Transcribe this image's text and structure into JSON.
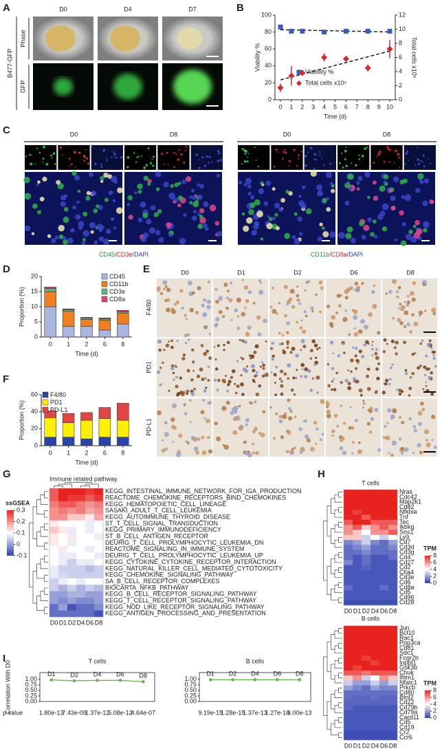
{
  "figure": {
    "panel_labels": [
      "A",
      "B",
      "C",
      "D",
      "E",
      "F",
      "G",
      "H",
      "I"
    ]
  },
  "panel_a": {
    "columns": [
      "D0",
      "D4",
      "D7"
    ],
    "sample": "B477-GFP",
    "rows": [
      "Phase",
      "GFP"
    ]
  },
  "panel_c": {
    "groups": [
      {
        "columns": [
          "D0",
          "D8"
        ],
        "stain": [
          {
            "text": "CD45",
            "color": "#1f9a3c"
          },
          {
            "text": "/CD3e",
            "color": "#d62728"
          },
          {
            "text": "/DAPI",
            "color": "#2b3a9b"
          }
        ]
      },
      {
        "columns": [
          "D0",
          "D8"
        ],
        "stain": [
          {
            "text": "CD11b",
            "color": "#1f9a3c"
          },
          {
            "text": "/CD8a",
            "color": "#d62728"
          },
          {
            "text": "/DAPI",
            "color": "#2b3a9b"
          }
        ]
      }
    ]
  },
  "panel_e": {
    "columns": [
      "D0",
      "D1",
      "D2",
      "D6",
      "D8"
    ],
    "rows": [
      "F4/80",
      "PD1",
      "PD-L1"
    ]
  },
  "chart_data": [
    {
      "type": "scatter",
      "x": [
        0,
        1,
        2,
        4,
        6,
        8,
        10
      ],
      "xlim": [
        -0.5,
        10.5
      ],
      "xticks": [
        0,
        1,
        2,
        3,
        4,
        5,
        6,
        7,
        8,
        9,
        10
      ],
      "ylim": [
        0,
        100
      ],
      "yticks": [
        0,
        20,
        40,
        60,
        80,
        100
      ],
      "y2lim": [
        0,
        12
      ],
      "y2ticks": [
        0,
        2,
        4,
        6,
        8,
        10,
        12
      ],
      "xlabel": "Time (d)",
      "ylabel": "Viability %",
      "y2label": "Total cells x10⁶",
      "trendline": true,
      "legend": "lower right",
      "series": [
        {
          "name": "Viability %",
          "color": "#3a5bb8",
          "marker": "square",
          "values": [
            86,
            81,
            81,
            80,
            81,
            81,
            81
          ],
          "errors": [
            2,
            1.5,
            1.5,
            1,
            1,
            1,
            1
          ]
        },
        {
          "name": "Total cells x10⁶",
          "color": "#d42a2a",
          "marker": "diamond",
          "axis": "y2",
          "values": [
            1.7,
            3.4,
            3.8,
            6.0,
            5.8,
            4.5,
            7.2
          ],
          "errors": [
            0.6,
            1.4,
            0.4,
            0.6,
            0.4,
            0.5,
            1.3
          ]
        }
      ]
    },
    {
      "type": "bar",
      "stacked": true,
      "categories": [
        "0",
        "1",
        "2",
        "6",
        "8"
      ],
      "ylim": [
        0,
        20
      ],
      "yticks": [
        0,
        5,
        10,
        15,
        20
      ],
      "xlabel": "Time (d)",
      "ylabel": "Proportion (%)",
      "legend": "upper right",
      "series": [
        {
          "name": "CD45",
          "color": "#a9b7e0",
          "values": [
            10,
            3.5,
            3.5,
            2.3,
            4.3
          ]
        },
        {
          "name": "CD11b",
          "color": "#f07f22",
          "values": [
            5,
            5,
            2.3,
            3.3,
            3.5
          ]
        },
        {
          "name": "CD3e",
          "color": "#5cb88c",
          "values": [
            1,
            0.5,
            0.5,
            0.4,
            0.5
          ]
        },
        {
          "name": "CD8a",
          "color": "#e0407a",
          "values": [
            0.5,
            0.3,
            0.2,
            0.3,
            0.5
          ]
        }
      ]
    },
    {
      "type": "bar",
      "stacked": true,
      "categories": [
        "0",
        "1",
        "2",
        "6",
        "8"
      ],
      "ylim": [
        0,
        60
      ],
      "yticks": [
        0,
        20,
        40,
        60
      ],
      "xlabel": "Time (d)",
      "ylabel": "Proportion (%)",
      "legend": "upper left",
      "series": [
        {
          "name": "F4/80",
          "color": "#2a44a8",
          "values": [
            10,
            10,
            8,
            10,
            10
          ]
        },
        {
          "name": "PD1",
          "color": "#fff000",
          "values": [
            23,
            17,
            22,
            22,
            20
          ]
        },
        {
          "name": "PD-L1",
          "color": "#e04646",
          "values": [
            8,
            11,
            9,
            13,
            20
          ]
        }
      ]
    },
    {
      "type": "heatmap",
      "title": "Immune related pathway",
      "columns": [
        "D0",
        "D1",
        "D2",
        "D4",
        "D6",
        "D8"
      ],
      "colorbar": {
        "label": "ssGSEA",
        "ticks": [
          0.3,
          0.2,
          0.1,
          0,
          -0.1
        ]
      },
      "colorscale": {
        "domain": [
          -0.1,
          0.1,
          0.3
        ],
        "colors": [
          "#2f3fb0",
          "#ffffff",
          "#e8231f"
        ]
      },
      "rows": [
        "KEGG_INTESTINAL_IMMUNE_NETWORK_FOR_IGA_PRODUCTION",
        "REACTOME_CHEMOKINE_RECEPTORS_BIND_CHEMOKINES",
        "KEGG_HEMATOPOIETIC_CELL_LINEAGE",
        "SASAKI_ADULT_T_CELL_LEUKEMIA",
        "KEGG_AUTOIMMUNE_THYROID_DISEASE",
        "ST_T_CELL_SIGNAL_TRANSDUCTION",
        "KEGG_PRIMARY_IMMUNODEFICIENCY",
        "ST_B_CELL_ANTIGEN_RECEPTOR",
        "DEURIG_T_CELL_PROLYMPHOCYTIC_LEUKEMIA_DN",
        "REACTOME_SIGNALING_IN_IMMUNE_SYSTEM",
        "DEURIG_T_CELL_PROLYMPHOCYTIC_LEUKEMIA_UP",
        "KEGG_CYTOKINE_CYTOKINE_RECEPTOR_INTERACTION",
        "KEGG_NATURAL_KILLER_CELL_MEDIATED_CYTOTOXICITY",
        "KEGG_CHEMOKINE_SIGNALING_PATHWAY",
        "SA_B_CELL_RECEPTOR_COMPLEXES",
        "BIOCARTA_NFKB_PATHWAY",
        "KEGG_B_CELL_RECEPTOR_SIGNALING_PATHWAY",
        "KEGG_T_CELL_RECEPTOR_SIGNALING_PATHWAY",
        "KEGG_NOD_LIKE_RECEPTOR_SIGNALING_PATHWAY",
        "KEGG_ANTIGEN_PROCESSING_AND_PRESENTATION"
      ],
      "values": [
        [
          0.25,
          0.3,
          0.3,
          0.3,
          0.28,
          0.3
        ],
        [
          0.25,
          0.3,
          0.28,
          0.28,
          0.25,
          0.28
        ],
        [
          0.22,
          0.25,
          0.25,
          0.22,
          0.2,
          0.22
        ],
        [
          0.2,
          0.22,
          0.2,
          0.22,
          0.18,
          0.2
        ],
        [
          0.2,
          0.2,
          0.15,
          0.15,
          0.12,
          0.18
        ],
        [
          0.12,
          0.1,
          0.1,
          0.1,
          0.08,
          0.1
        ],
        [
          0.15,
          0.12,
          0.08,
          0.1,
          0.08,
          0.1
        ],
        [
          0.12,
          0.1,
          0.12,
          0.1,
          0.1,
          0.08
        ],
        [
          0.12,
          0.1,
          0.08,
          0.1,
          0.1,
          0.1
        ],
        [
          0.1,
          0.12,
          0.1,
          0.1,
          0.08,
          0.1
        ],
        [
          0.1,
          0.08,
          0.08,
          0.1,
          0.1,
          0.08
        ],
        [
          0.1,
          0.08,
          0.05,
          0.08,
          0.08,
          0.1
        ],
        [
          0.08,
          0.05,
          0.05,
          0.05,
          0.03,
          0.05
        ],
        [
          0.08,
          0.06,
          0.05,
          0.05,
          0.05,
          0.05
        ],
        [
          0.05,
          0.08,
          0.1,
          0.08,
          0.1,
          0.1
        ],
        [
          0.05,
          0.02,
          0.05,
          0.02,
          0.05,
          0.03
        ],
        [
          0,
          0,
          0.02,
          0.02,
          0,
          0
        ],
        [
          0,
          -0.02,
          0,
          -0.02,
          -0.02,
          0
        ],
        [
          -0.05,
          0,
          -0.08,
          -0.05,
          -0.05,
          -0.02
        ],
        [
          -0.05,
          -0.05,
          -0.05,
          -0.05,
          -0.05,
          -0.08
        ]
      ]
    },
    {
      "type": "heatmap",
      "title": "T cells",
      "columns": [
        "D0",
        "D1",
        "D2",
        "D4",
        "D6",
        "D8"
      ],
      "colorbar": {
        "label": "TPM",
        "ticks": [
          8,
          6,
          4,
          2,
          0
        ]
      },
      "colorscale": {
        "domain": [
          0,
          4,
          8
        ],
        "colors": [
          "#2f3fb0",
          "#ffffff",
          "#e8231f"
        ]
      },
      "rows": [
        "Nras",
        "Cdc42",
        "Map2k1",
        "Cd82",
        "Nfkbia",
        "Tnf",
        "Tec",
        "Ikbkg",
        "Sos1",
        "Ly9",
        "Cd7",
        "Cd3d",
        "Cd3g",
        "Cd4",
        "Cd27",
        "Cd2",
        "Ctla4",
        "Cd3e",
        "Cd6",
        "Cd8a",
        "Cd5",
        "Cd96",
        "Cd28"
      ],
      "values": [
        [
          8,
          8,
          8,
          8,
          8,
          8
        ],
        [
          8,
          8,
          8,
          8,
          8,
          8
        ],
        [
          8,
          8,
          8,
          8,
          8,
          8
        ],
        [
          8,
          8,
          8,
          8,
          8,
          8
        ],
        [
          8,
          7.5,
          8,
          8,
          8,
          8
        ],
        [
          8,
          8,
          7,
          8,
          8,
          8
        ],
        [
          7,
          8,
          8,
          7,
          7,
          7
        ],
        [
          6,
          7,
          5,
          6,
          7,
          6
        ],
        [
          6,
          5,
          4,
          6,
          6,
          7
        ],
        [
          5,
          5,
          3,
          4,
          3,
          4
        ],
        [
          1.5,
          2,
          3,
          1.5,
          1,
          2
        ],
        [
          1,
          1.5,
          2,
          1,
          1,
          1.5
        ],
        [
          1,
          1,
          1.5,
          1,
          1,
          1
        ],
        [
          1,
          0.5,
          1,
          0.5,
          0.5,
          1
        ],
        [
          1.5,
          0.5,
          1,
          0.5,
          0.5,
          0.5
        ],
        [
          0.5,
          0.5,
          0.8,
          0.5,
          0.5,
          0.5
        ],
        [
          0.5,
          0.5,
          0.5,
          0.5,
          0.5,
          0.5
        ],
        [
          0.5,
          0.5,
          0.5,
          0.5,
          0.5,
          0.5
        ],
        [
          0.5,
          0.5,
          0.5,
          0.5,
          0.5,
          0.5
        ],
        [
          1,
          0.5,
          0.5,
          0.5,
          1,
          0.5
        ],
        [
          0.5,
          0.5,
          0.5,
          0.5,
          0.5,
          0.5
        ],
        [
          0.5,
          0.5,
          0.5,
          0.5,
          0.5,
          0.5
        ],
        [
          0.3,
          0.3,
          0.3,
          0.3,
          0.3,
          0.3
        ]
      ]
    },
    {
      "type": "heatmap",
      "title": "B cells",
      "columns": [
        "D0",
        "D1",
        "D2",
        "D4",
        "D6",
        "D8"
      ],
      "colorbar": {
        "label": "TPM",
        "ticks": [
          8,
          6,
          4,
          2,
          0
        ]
      },
      "colorscale": {
        "domain": [
          0,
          4,
          8
        ],
        "colors": [
          "#2f3fb0",
          "#ffffff",
          "#e8231f"
        ]
      },
      "rows": [
        "Jun",
        "Bcl10",
        "Rac1",
        "Ppp3ca",
        "Cd81",
        "Sdc1",
        "Fcgr2b",
        "Inppl1",
        "Gsk3b",
        "Chuk",
        "Ifitm1",
        "Nfatc1",
        "Prkcb",
        "Cd80",
        "Btnl2",
        "Cd22",
        "Cd79b",
        "Cd79a",
        "Card11",
        "Cd5",
        "Cd19",
        "Cr2",
        "Ccr6"
      ],
      "values": [
        [
          8,
          8,
          8,
          8,
          8,
          8
        ],
        [
          8,
          8,
          8,
          8,
          8,
          8
        ],
        [
          8,
          8,
          8,
          8,
          8,
          8
        ],
        [
          8,
          8,
          8,
          8,
          8,
          8
        ],
        [
          8,
          8,
          8,
          8,
          8,
          8
        ],
        [
          8,
          8,
          8,
          8,
          8,
          8
        ],
        [
          8,
          8,
          7.5,
          8,
          8,
          8
        ],
        [
          8,
          8,
          8,
          7.5,
          8,
          8
        ],
        [
          8,
          7.5,
          8,
          8,
          8,
          8
        ],
        [
          7,
          7,
          6.5,
          7,
          7,
          7
        ],
        [
          5,
          6,
          3,
          4,
          6,
          5
        ],
        [
          3,
          2,
          2,
          3,
          2,
          3
        ],
        [
          2,
          1.5,
          1,
          2,
          1.5,
          1.5
        ],
        [
          1,
          1,
          1,
          1,
          1,
          1
        ],
        [
          1,
          0.8,
          0.8,
          1,
          0.8,
          0.8
        ],
        [
          0.8,
          0.8,
          0.8,
          0.8,
          0.8,
          0.8
        ],
        [
          0.8,
          0.5,
          0.5,
          0.5,
          0.5,
          0.5
        ],
        [
          0.5,
          0.5,
          0.5,
          0.5,
          0.5,
          0.5
        ],
        [
          0.5,
          0.5,
          0.5,
          0.5,
          0.5,
          0.5
        ],
        [
          0.5,
          0.5,
          0.5,
          0.5,
          0.5,
          0.5
        ],
        [
          0.5,
          0.5,
          0.5,
          0.5,
          0.5,
          0.5
        ],
        [
          0.3,
          0.3,
          0.3,
          0.3,
          0.3,
          0.3
        ],
        [
          0.3,
          0.3,
          0.3,
          0.3,
          0.3,
          0.3
        ]
      ]
    },
    {
      "type": "line",
      "title": "T cells",
      "ylabel": "Correlation With D0",
      "categories": [
        "D1",
        "D2",
        "D4",
        "D6",
        "D8"
      ],
      "values": [
        0.97,
        0.93,
        0.95,
        0.95,
        0.89
      ],
      "color": "#6bb24a",
      "ylim": [
        0,
        1.3
      ],
      "yticks": [
        {
          "value": 0,
          "label": "0.00"
        },
        {
          "value": 0.25,
          "label": "0.25"
        },
        {
          "value": 0.5,
          "label": "0.50"
        },
        {
          "value": 0.75,
          "label": "0.75"
        },
        {
          "value": 1,
          "label": "1.00"
        }
      ],
      "p_label": "p value",
      "p_values": [
        "1.80e-13",
        "7.43e-09",
        "1.37e-12",
        "5.08e-12",
        "4.64e-07"
      ]
    },
    {
      "type": "line",
      "title": "B cells",
      "categories": [
        "D1",
        "D2",
        "D4",
        "D6",
        "D8"
      ],
      "values": [
        0.98,
        0.98,
        0.98,
        0.98,
        0.98
      ],
      "color": "#6bb24a",
      "ylim": [
        0,
        1.3
      ],
      "yticks": [
        {
          "value": 0,
          "label": "0.00"
        },
        {
          "value": 0.25,
          "label": "0.25"
        },
        {
          "value": 0.5,
          "label": "0.50"
        },
        {
          "value": 0.75,
          "label": "0.75"
        },
        {
          "value": 1,
          "label": "1.00"
        }
      ],
      "p_values": [
        "9.19e-15",
        "1.28e-15",
        "1.37e-13",
        "1.27e-10",
        "6.00e-13"
      ]
    }
  ]
}
